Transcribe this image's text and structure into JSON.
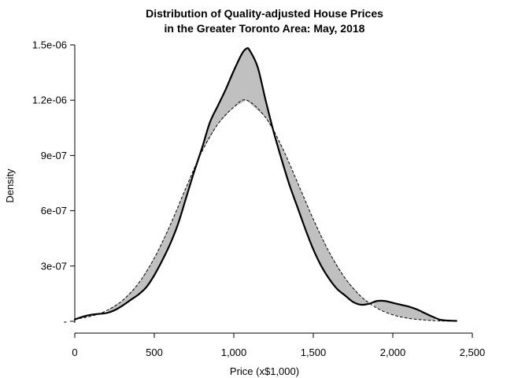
{
  "chart_data": {
    "type": "area",
    "title_lines": [
      "Distribution of Quality-adjusted House Prices",
      "in the Greater Toronto Area: May, 2018"
    ],
    "xlabel": "Price (x$1,000)",
    "ylabel": "Density",
    "xlim": [
      0,
      2500
    ],
    "ylim": [
      0,
      1.5e-06
    ],
    "x_ticks": [
      0,
      500,
      1000,
      1500,
      2000,
      2500
    ],
    "x_tick_labels": [
      "0",
      "500",
      "1,000",
      "1,500",
      "2,000",
      "2,500"
    ],
    "y_ticks": [
      0,
      3e-07,
      6e-07,
      9e-07,
      1.2e-06,
      1.5e-06
    ],
    "y_tick_labels": [
      "-",
      "3e-07",
      "6e-07",
      "9e-07",
      "1.2e-06",
      "1.5e-06"
    ],
    "grid": false,
    "legend": "none",
    "shade_color": "#c0c0c0",
    "series": [
      {
        "line_style": "solid",
        "x": [
          0,
          50,
          100,
          150,
          200,
          250,
          300,
          350,
          400,
          450,
          500,
          550,
          600,
          650,
          700,
          750,
          800,
          850,
          900,
          950,
          1000,
          1050,
          1080,
          1100,
          1150,
          1200,
          1250,
          1300,
          1350,
          1400,
          1450,
          1500,
          1550,
          1600,
          1650,
          1700,
          1750,
          1800,
          1850,
          1900,
          1950,
          2000,
          2050,
          2100,
          2150,
          2200,
          2250,
          2300,
          2350,
          2400
        ],
        "y": [
          1e-08,
          2.5e-08,
          3.5e-08,
          4e-08,
          4.5e-08,
          6e-08,
          8.5e-08,
          1.15e-07,
          1.45e-07,
          1.85e-07,
          2.5e-07,
          3.3e-07,
          4.2e-07,
          5.3e-07,
          6.7e-07,
          8.1e-07,
          9.4e-07,
          1.08e-06,
          1.17e-06,
          1.26e-06,
          1.36e-06,
          1.45e-06,
          1.48e-06,
          1.47e-06,
          1.38e-06,
          1.2e-06,
          1.03e-06,
          8.8e-07,
          7.4e-07,
          6.2e-07,
          5e-07,
          3.9e-07,
          3e-07,
          2.3e-07,
          1.75e-07,
          1.4e-07,
          1.05e-07,
          9e-08,
          9.5e-08,
          1.1e-07,
          1.1e-07,
          1e-07,
          9e-08,
          8e-08,
          6.5e-08,
          4.5e-08,
          2.5e-08,
          8e-09,
          4e-09,
          2e-09
        ]
      },
      {
        "line_style": "dashed",
        "x": [
          0,
          100,
          200,
          300,
          400,
          500,
          600,
          700,
          800,
          900,
          1000,
          1080,
          1200,
          1300,
          1400,
          1500,
          1600,
          1700,
          1800,
          1900,
          2000,
          2100,
          2200,
          2300,
          2400
        ],
        "y": [
          1.2e-08,
          2.7e-08,
          5.8e-08,
          1.13e-07,
          2.05e-07,
          3.43e-07,
          5.22e-07,
          7.26e-07,
          9.22e-07,
          1.07e-06,
          1.162e-06,
          1.2e-06,
          1.106e-06,
          9.51e-07,
          7.55e-07,
          5.54e-07,
          3.75e-07,
          2.34e-07,
          1.35e-07,
          7.2e-08,
          3.5e-08,
          1.6e-08,
          7e-09,
          2e-09,
          1e-09
        ]
      }
    ]
  }
}
